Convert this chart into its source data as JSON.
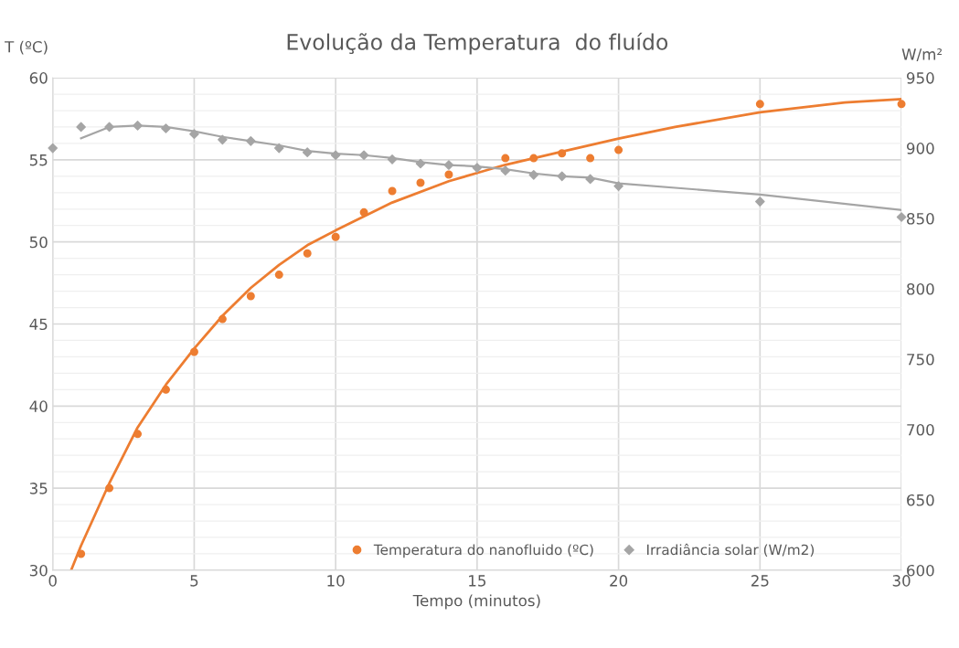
{
  "chart_data": {
    "type": "scatter",
    "title": "Evolução da Temperatura  do fluído",
    "xlabel": "Tempo (minutos)",
    "ylabel": "T (ºC)",
    "y2label": "W/m²",
    "xlim": [
      0,
      30
    ],
    "xticks": [
      0,
      5,
      10,
      15,
      20,
      25,
      30
    ],
    "ylim": [
      30,
      60
    ],
    "yticks": [
      30,
      {
        "value": 31,
        "label": null
      },
      {
        "value": 32,
        "label": null
      },
      {
        "value": 33,
        "label": null
      },
      {
        "value": 34,
        "label": null
      },
      35,
      {
        "value": 36,
        "label": null
      },
      {
        "value": 37,
        "label": null
      },
      {
        "value": 38,
        "label": null
      },
      {
        "value": 39,
        "label": null
      },
      40,
      {
        "value": 41,
        "label": null
      },
      {
        "value": 42,
        "label": null
      },
      {
        "value": 43,
        "label": null
      },
      {
        "value": 44,
        "label": null
      },
      45,
      {
        "value": 46,
        "label": null
      },
      {
        "value": 47,
        "label": null
      },
      {
        "value": 48,
        "label": null
      },
      {
        "value": 49,
        "label": null
      },
      50,
      {
        "value": 51,
        "label": null
      },
      {
        "value": 52,
        "label": null
      },
      {
        "value": 53,
        "label": null
      },
      {
        "value": 54,
        "label": null
      },
      55,
      {
        "value": 56,
        "label": null
      },
      {
        "value": 57,
        "label": null
      },
      {
        "value": 58,
        "label": null
      },
      {
        "value": 59,
        "label": null
      },
      60
    ],
    "y2lim": [
      600,
      950
    ],
    "y2ticks": [
      600,
      650,
      700,
      750,
      800,
      850,
      900,
      950
    ],
    "grid": true,
    "legend": "bottom",
    "series": [
      {
        "name": "Temperatura do nanofluido (ºC)",
        "marker": "circle",
        "color": "#ed7d31",
        "x": [
          1,
          2,
          3,
          4,
          5,
          6,
          7,
          8,
          9,
          10,
          11,
          12,
          13,
          14,
          15,
          16,
          17,
          18,
          19,
          20,
          25,
          30
        ],
        "values": [
          31.0,
          35.0,
          38.3,
          41.0,
          43.3,
          45.3,
          46.7,
          48.0,
          49.3,
          50.3,
          51.8,
          53.1,
          53.6,
          54.1,
          null,
          55.1,
          55.1,
          55.4,
          55.1,
          55.6,
          58.4,
          58.4
        ]
      },
      {
        "name": "Irradiância solar (W/m2)",
        "marker": "diamond",
        "axis": "y2",
        "color": "#a5a5a5",
        "x": [
          0,
          1,
          2,
          3,
          4,
          5,
          6,
          7,
          8,
          9,
          10,
          11,
          12,
          13,
          14,
          15,
          16,
          17,
          18,
          19,
          20,
          25,
          30
        ],
        "values": [
          900,
          915,
          915,
          916,
          914,
          910,
          906,
          905,
          900,
          897,
          895,
          895,
          892,
          889,
          888,
          886,
          884,
          881,
          880,
          878,
          873,
          862,
          851
        ]
      },
      {
        "type": "line",
        "marker": "none",
        "color": "#ed7d31",
        "x": [
          0.65,
          1,
          2,
          3,
          4,
          5,
          6,
          7,
          8,
          9,
          10,
          12,
          14,
          15,
          16,
          18,
          20,
          22,
          25,
          28,
          30
        ],
        "values": [
          30.0,
          31.5,
          35.3,
          38.7,
          41.3,
          43.5,
          45.5,
          47.2,
          48.6,
          49.8,
          50.7,
          52.4,
          53.7,
          54.2,
          54.7,
          55.5,
          56.3,
          57.0,
          57.9,
          58.5,
          58.7
        ]
      },
      {
        "type": "line",
        "marker": "none",
        "axis": "y2",
        "color": "#a5a5a5",
        "x": [
          1,
          2,
          3,
          4,
          5,
          6,
          7,
          8,
          9,
          10,
          11,
          12,
          13,
          14,
          15,
          16,
          17,
          18,
          19,
          20,
          25,
          30
        ],
        "values": [
          907,
          915,
          916,
          915,
          912,
          908,
          905,
          902,
          898,
          896,
          895,
          893,
          890,
          888,
          887,
          885,
          882,
          880,
          879,
          875,
          867,
          856
        ]
      }
    ]
  }
}
